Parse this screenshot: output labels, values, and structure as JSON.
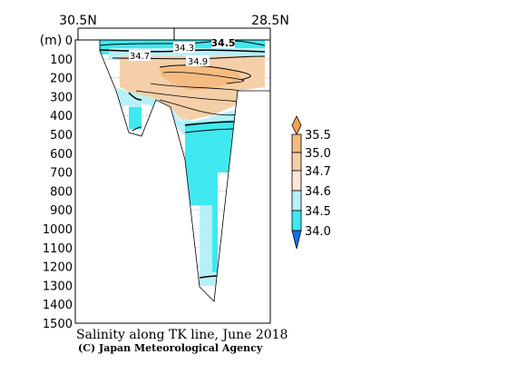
{
  "chart_data": {
    "type": "contour section",
    "title": "Salinity along TK line, June 2018",
    "credit": "(C) Japan Meteorological Agency",
    "x_labels": {
      "left": "30.5N",
      "right": "28.5N"
    },
    "x_range": [
      30.5,
      28.5
    ],
    "y_unit": "(m)",
    "y_ticks": [
      0,
      100,
      200,
      300,
      400,
      500,
      600,
      700,
      800,
      900,
      1000,
      1100,
      1200,
      1300,
      1400,
      1500
    ],
    "y_range": [
      0,
      1500
    ],
    "contour_labels": [
      "34.3",
      "34.5",
      "34.7",
      "34.9"
    ],
    "colorbar": {
      "labels": [
        "35.5",
        "35.0",
        "34.7",
        "34.6",
        "34.5",
        "34.0"
      ],
      "colors": {
        "above_35.5": "#f0a050",
        "35.0_35.5": "#f4bc80",
        "34.7_35.0": "#f5cfa8",
        "34.6_34.7": "#fbe6d8",
        "34.5_34.6": "#b8f0f8",
        "34.0_34.5": "#40e8f0",
        "below_34.0": "#1070f0"
      }
    }
  }
}
